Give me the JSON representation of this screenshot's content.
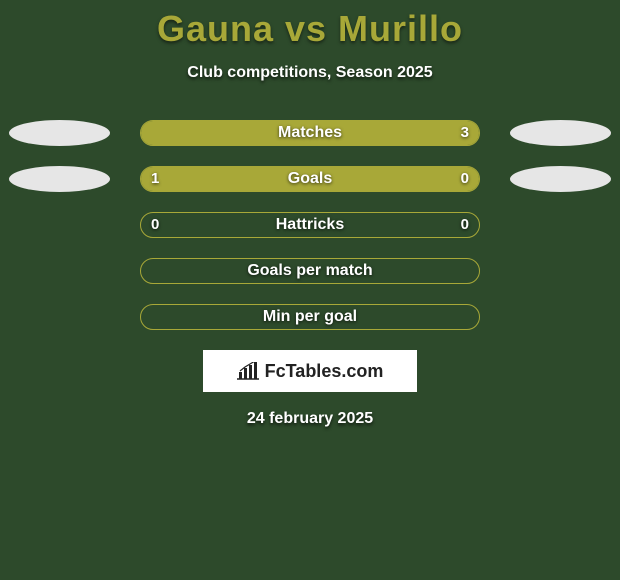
{
  "background_color": "#2d4a2b",
  "title": {
    "text": "Gauna vs Murillo",
    "color": "#a8a838",
    "fontsize": 36,
    "fontweight": 800
  },
  "subtitle": {
    "text": "Club competitions, Season 2025",
    "color": "#ffffff",
    "fontsize": 16,
    "fontweight": 700
  },
  "logo_text": "FcTables.com",
  "date_text": "24 february 2025",
  "bar_style": {
    "track_height": 26,
    "track_border_radius": 13,
    "fill_color": "#a8a838",
    "empty_color": "#2d4a2b",
    "border_color": "#a8a838",
    "label_color": "#ffffff",
    "label_fontsize": 16,
    "value_fontsize": 15
  },
  "ellipse_style": {
    "width": 101,
    "height": 26
  },
  "rows": [
    {
      "label": "Matches",
      "left_value": null,
      "right_value": "3",
      "left_pct": 0,
      "right_pct": 100,
      "left_ellipse_color": "#e6e6e6",
      "right_ellipse_color": "#e6e6e6",
      "show_left_ellipse": true,
      "show_right_ellipse": true
    },
    {
      "label": "Goals",
      "left_value": "1",
      "right_value": "0",
      "left_pct": 77,
      "right_pct": 23,
      "left_ellipse_color": "#e6e6e6",
      "right_ellipse_color": "#e6e6e6",
      "show_left_ellipse": true,
      "show_right_ellipse": true
    },
    {
      "label": "Hattricks",
      "left_value": "0",
      "right_value": "0",
      "left_pct": 0,
      "right_pct": 0,
      "left_ellipse_color": null,
      "right_ellipse_color": null,
      "show_left_ellipse": false,
      "show_right_ellipse": false
    },
    {
      "label": "Goals per match",
      "left_value": null,
      "right_value": null,
      "left_pct": 0,
      "right_pct": 0,
      "left_ellipse_color": null,
      "right_ellipse_color": null,
      "show_left_ellipse": false,
      "show_right_ellipse": false
    },
    {
      "label": "Min per goal",
      "left_value": null,
      "right_value": null,
      "left_pct": 0,
      "right_pct": 0,
      "left_ellipse_color": null,
      "right_ellipse_color": null,
      "show_left_ellipse": false,
      "show_right_ellipse": false
    }
  ]
}
